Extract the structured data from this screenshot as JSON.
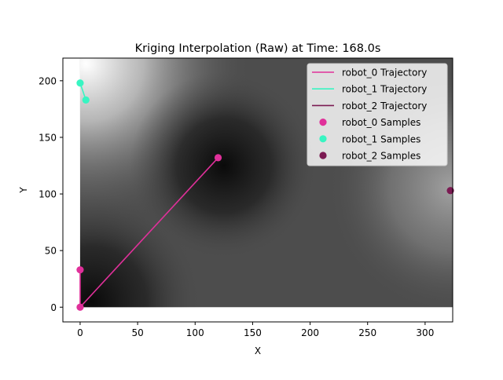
{
  "chart_data": {
    "type": "line",
    "title": "Kriging Interpolation (Raw) at Time: 168.0s",
    "xlabel": "X",
    "ylabel": "Y",
    "xlim": [
      -15,
      324
    ],
    "ylim": [
      -13,
      220
    ],
    "xticks": [
      0,
      50,
      100,
      150,
      200,
      250,
      300
    ],
    "yticks": [
      0,
      50,
      100,
      150,
      200
    ],
    "grid": false,
    "legend_position": "top-right",
    "background": {
      "kind": "interpolated-field-grayscale",
      "x_range": [
        0,
        324
      ],
      "y_range": [
        0,
        220
      ],
      "dark_spots": [
        {
          "x": 10,
          "y": 5
        },
        {
          "x": 125,
          "y": 125
        }
      ],
      "light_spots": [
        {
          "x": 5,
          "y": 215
        },
        {
          "x": 324,
          "y": 105
        }
      ]
    },
    "series": [
      {
        "name": "robot_0 Trajectory",
        "samples_name": "robot_0 Samples",
        "color": "#e0309a",
        "trajectory": [
          {
            "x": 0,
            "y": 33
          },
          {
            "x": 0,
            "y": 0
          },
          {
            "x": 120,
            "y": 132
          }
        ],
        "samples": [
          {
            "x": 0,
            "y": 33
          },
          {
            "x": 0,
            "y": 0
          },
          {
            "x": 120,
            "y": 132
          }
        ]
      },
      {
        "name": "robot_1 Trajectory",
        "samples_name": "robot_1 Samples",
        "color": "#38f5c2",
        "trajectory": [
          {
            "x": 0,
            "y": 198
          },
          {
            "x": 5,
            "y": 183
          }
        ],
        "samples": [
          {
            "x": 0,
            "y": 198
          },
          {
            "x": 5,
            "y": 183
          }
        ]
      },
      {
        "name": "robot_2 Trajectory",
        "samples_name": "robot_2 Samples",
        "color": "#7b1a52",
        "trajectory": [
          {
            "x": 322,
            "y": 103
          }
        ],
        "samples": [
          {
            "x": 322,
            "y": 103
          }
        ]
      }
    ]
  }
}
